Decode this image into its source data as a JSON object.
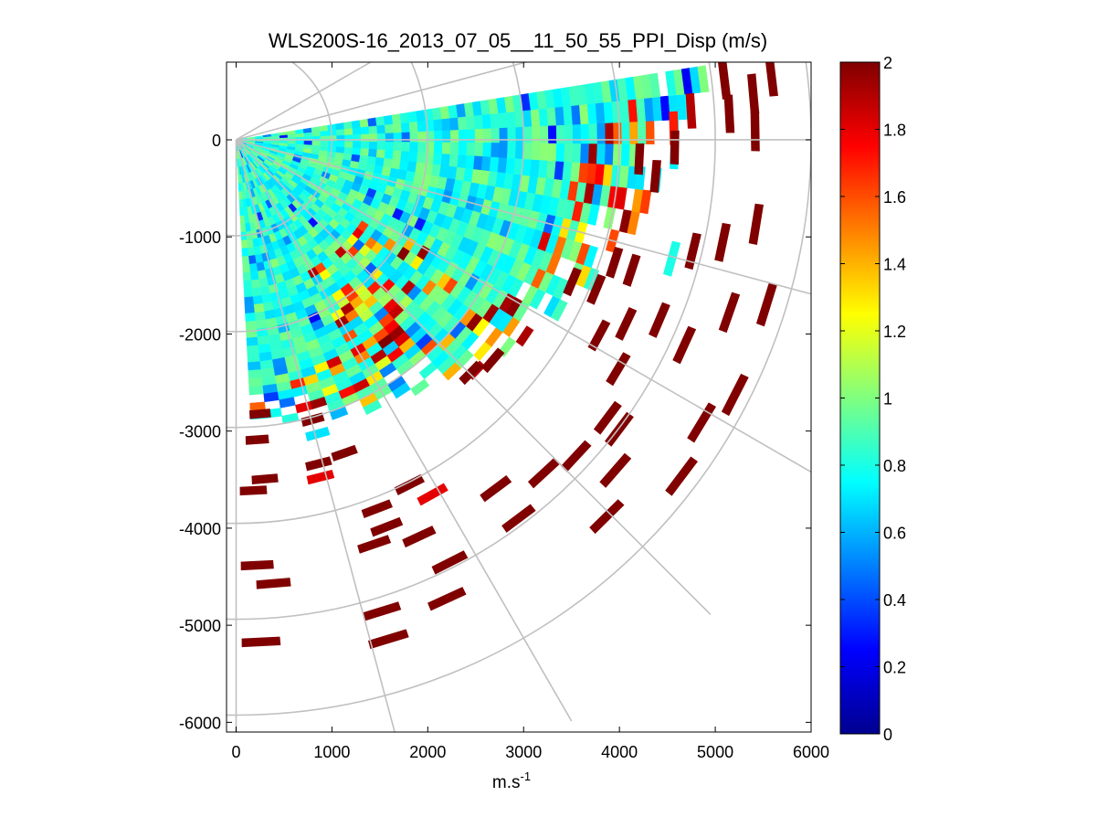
{
  "chart_data": {
    "type": "heatmap",
    "title": "WLS200S-16_2013_07_05__11_50_55_PPI_Disp (m/s)",
    "xlabel": "m.s",
    "xlabel_superscript": "-1",
    "ylabel": "",
    "xlim": [
      -100,
      6000
    ],
    "ylim": [
      -6100,
      800
    ],
    "xticks": [
      0,
      1000,
      2000,
      3000,
      4000,
      5000,
      6000
    ],
    "yticks": [
      -6000,
      -5000,
      -4000,
      -3000,
      -2000,
      -1000,
      0
    ],
    "xtick_labels": [
      "0",
      "1000",
      "2000",
      "3000",
      "4000",
      "5000",
      "6000"
    ],
    "ytick_labels": [
      "-6000",
      "-5000",
      "-4000",
      "-3000",
      "-2000",
      "-1000",
      "0"
    ],
    "polar_grid": {
      "ring_radii": [
        1000,
        2000,
        3000,
        4000,
        5000,
        6000
      ],
      "spoke_angles_deg": [
        30,
        15,
        0,
        -15,
        -30,
        -45,
        -60,
        -75,
        -90
      ]
    },
    "scan": {
      "azimuth_range_deg": [
        -87,
        8
      ],
      "max_range_m": 5400,
      "dense_range_m": 2900
    },
    "colorbar": {
      "colormap": "jet",
      "range": [
        0,
        2
      ],
      "ticks": [
        0,
        0.2,
        0.4,
        0.6,
        0.8,
        1,
        1.2,
        1.4,
        1.6,
        1.8,
        2
      ],
      "tick_labels": [
        "0",
        "0.2",
        "0.4",
        "0.6",
        "0.8",
        "1",
        "1.2",
        "1.4",
        "1.6",
        "1.8",
        "2"
      ]
    },
    "highlight_cells": [
      {
        "x": 5100,
        "y": 620,
        "v": 2
      },
      {
        "x": 5590,
        "y": 670,
        "v": 2
      },
      {
        "x": 5400,
        "y": 480,
        "v": 2
      },
      {
        "x": 5150,
        "y": 270,
        "v": 2
      },
      {
        "x": 4570,
        "y": 120,
        "v": 1.7
      },
      {
        "x": 5420,
        "y": 90,
        "v": 2
      },
      {
        "x": 4750,
        "y": 300,
        "v": 1.9
      },
      {
        "x": 4580,
        "y": -80,
        "v": 2
      },
      {
        "x": 4380,
        "y": -380,
        "v": 2
      },
      {
        "x": 4210,
        "y": -200,
        "v": 2
      },
      {
        "x": 5430,
        "y": -880,
        "v": 2
      },
      {
        "x": 5080,
        "y": -1070,
        "v": 2
      },
      {
        "x": 4770,
        "y": -1160,
        "v": 2
      },
      {
        "x": 4550,
        "y": -1240,
        "v": 0.8
      },
      {
        "x": 3950,
        "y": -1280,
        "v": 2
      },
      {
        "x": 4130,
        "y": -1360,
        "v": 2
      },
      {
        "x": 3510,
        "y": -1480,
        "v": 2
      },
      {
        "x": 3760,
        "y": -1560,
        "v": 2
      },
      {
        "x": 5540,
        "y": -1720,
        "v": 2
      },
      {
        "x": 5150,
        "y": -1800,
        "v": 2
      },
      {
        "x": 4420,
        "y": -1880,
        "v": 2
      },
      {
        "x": 4070,
        "y": -1920,
        "v": 2
      },
      {
        "x": 3790,
        "y": -2040,
        "v": 2
      },
      {
        "x": 4680,
        "y": -2140,
        "v": 2
      },
      {
        "x": 3990,
        "y": -2390,
        "v": 2
      },
      {
        "x": 2680,
        "y": -2300,
        "v": 2
      },
      {
        "x": 2450,
        "y": -2430,
        "v": 2
      },
      {
        "x": 5210,
        "y": -2660,
        "v": 2
      },
      {
        "x": 4860,
        "y": -2950,
        "v": 2
      },
      {
        "x": 3880,
        "y": -2900,
        "v": 2
      },
      {
        "x": 4000,
        "y": -3020,
        "v": 2
      },
      {
        "x": 3550,
        "y": -3300,
        "v": 2
      },
      {
        "x": 3210,
        "y": -3480,
        "v": 2
      },
      {
        "x": 3960,
        "y": -3450,
        "v": 2
      },
      {
        "x": 4650,
        "y": -3510,
        "v": 2
      },
      {
        "x": 2710,
        "y": -3640,
        "v": 2
      },
      {
        "x": 2950,
        "y": -3950,
        "v": 2
      },
      {
        "x": 3870,
        "y": -3930,
        "v": 2
      },
      {
        "x": 1810,
        "y": -3600,
        "v": 2
      },
      {
        "x": 2050,
        "y": -3700,
        "v": 1.8
      },
      {
        "x": 1470,
        "y": -3850,
        "v": 2
      },
      {
        "x": 1570,
        "y": -4040,
        "v": 2
      },
      {
        "x": 1440,
        "y": -4220,
        "v": 2
      },
      {
        "x": 1910,
        "y": -4140,
        "v": 2
      },
      {
        "x": 2230,
        "y": -4410,
        "v": 2
      },
      {
        "x": 2200,
        "y": -4790,
        "v": 2
      },
      {
        "x": 1520,
        "y": -4920,
        "v": 2
      },
      {
        "x": 1590,
        "y": -5210,
        "v": 2
      },
      {
        "x": 220,
        "y": -4440,
        "v": 2
      },
      {
        "x": 390,
        "y": -4630,
        "v": 2
      },
      {
        "x": 260,
        "y": -5240,
        "v": 2
      },
      {
        "x": 220,
        "y": -3130,
        "v": 2
      },
      {
        "x": 300,
        "y": -3540,
        "v": 2
      },
      {
        "x": 180,
        "y": -3660,
        "v": 2
      },
      {
        "x": 1130,
        "y": -3270,
        "v": 2
      },
      {
        "x": 860,
        "y": -3380,
        "v": 2
      },
      {
        "x": 880,
        "y": -3520,
        "v": 1.8
      },
      {
        "x": 250,
        "y": -2860,
        "v": 2
      },
      {
        "x": 800,
        "y": -2920,
        "v": 2
      },
      {
        "x": 850,
        "y": -3070,
        "v": 0.7
      }
    ]
  }
}
